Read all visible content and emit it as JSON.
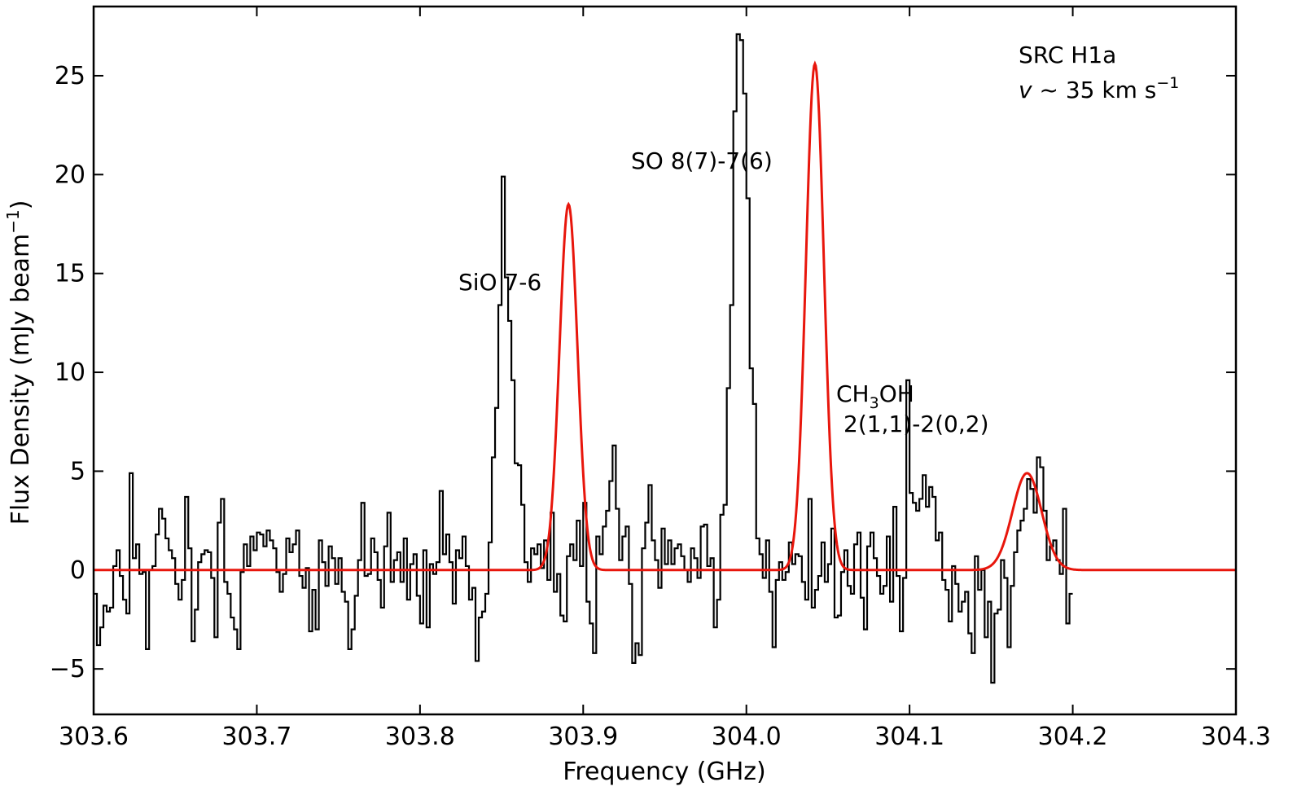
{
  "chart_data": {
    "type": "line",
    "xlabel": "Frequency (GHz)",
    "ylabel_main": "Flux Density (mJy beam",
    "ylabel_sup": "−1",
    "ylabel_close": ")",
    "xlim": [
      303.6,
      304.3
    ],
    "ylim": [
      -7.3,
      28.5
    ],
    "x_ticks": [
      303.6,
      303.7,
      303.8,
      303.9,
      304.0,
      304.1,
      304.2,
      304.3
    ],
    "x_tick_labels": [
      "303.6",
      "303.7",
      "303.8",
      "303.9",
      "304.0",
      "304.1",
      "304.2",
      "304.3"
    ],
    "y_ticks": [
      -5,
      0,
      5,
      10,
      15,
      20,
      25
    ],
    "y_tick_labels": [
      "−5",
      "0",
      "5",
      "10",
      "15",
      "20",
      "25"
    ],
    "grid": false,
    "colors": {
      "spectrum": "#000000",
      "fit": "#e8160c"
    },
    "annotations": {
      "source_line1": "SRC H1a",
      "source_line2_italic": "v",
      "source_line2_rest": " ~ 35 km s",
      "source_line2_sup": "−1",
      "sio": "SiO 7-6",
      "so": "SO 8(7)-7(6)",
      "ch3oh_a": "CH",
      "ch3oh_sub": "3",
      "ch3oh_b": "OH",
      "ch3oh_transition": "2(1,1)-2(0,2)"
    },
    "series": [
      {
        "kind": "spectrum",
        "channel_width": 0.002,
        "x_start": 303.6,
        "values": [
          -1.2,
          -3.8,
          -2.9,
          -1.8,
          -2.1,
          -1.9,
          0.2,
          1.0,
          -0.3,
          -1.5,
          -2.2,
          4.9,
          0.6,
          1.3,
          -0.2,
          -0.1,
          -4.0,
          0.0,
          0.2,
          1.8,
          3.1,
          2.6,
          1.6,
          1.0,
          0.6,
          -0.7,
          -1.5,
          -0.5,
          3.7,
          1.1,
          -3.6,
          -2.0,
          0.4,
          0.8,
          1.0,
          0.9,
          -0.4,
          -3.4,
          2.4,
          3.6,
          -0.6,
          -1.2,
          -2.4,
          -3.0,
          -4.0,
          -0.1,
          1.3,
          0.2,
          1.7,
          1.0,
          1.9,
          1.8,
          1.2,
          2.0,
          1.5,
          1.1,
          -0.1,
          -1.1,
          -0.2,
          1.6,
          0.9,
          1.3,
          2.0,
          -0.3,
          -0.9,
          0.1,
          -3.1,
          -1.0,
          -3.0,
          1.5,
          0.4,
          -0.8,
          1.2,
          0.6,
          -0.7,
          0.6,
          -1.1,
          -1.6,
          -4.0,
          -3.0,
          -1.3,
          0.5,
          3.4,
          -0.3,
          -0.2,
          1.6,
          0.9,
          -0.5,
          -1.9,
          1.2,
          2.9,
          -0.6,
          0.5,
          0.9,
          -0.6,
          1.6,
          -1.5,
          0.3,
          0.8,
          -1.3,
          -2.7,
          1.0,
          -2.9,
          0.3,
          -0.2,
          0.4,
          4.0,
          0.8,
          1.8,
          0.4,
          -1.7,
          1.0,
          0.6,
          1.7,
          0.2,
          -1.5,
          -0.9,
          -4.6,
          -2.4,
          -2.1,
          -1.2,
          1.4,
          5.7,
          8.2,
          13.4,
          19.9,
          14.8,
          12.6,
          9.6,
          5.4,
          5.3,
          3.3,
          0.4,
          -0.6,
          1.1,
          0.8,
          1.3,
          0.1,
          1.5,
          -0.5,
          2.9,
          -1.1,
          -0.2,
          -2.3,
          -2.6,
          0.7,
          1.3,
          0.5,
          2.5,
          0.2,
          3.4,
          -1.6,
          -2.7,
          -4.2,
          1.7,
          0.8,
          2.2,
          3.0,
          4.5,
          6.3,
          3.1,
          0.5,
          1.7,
          2.2,
          -0.7,
          -4.7,
          -3.7,
          -4.3,
          1.1,
          2.4,
          4.3,
          1.5,
          0.5,
          -0.9,
          2.1,
          0.3,
          1.5,
          0.3,
          1.1,
          1.3,
          0.7,
          0.0,
          -0.6,
          1.1,
          0.6,
          -0.4,
          2.2,
          2.3,
          0.2,
          0.6,
          -2.9,
          -1.5,
          2.8,
          3.3,
          9.2,
          13.4,
          23.2,
          27.1,
          26.8,
          24.1,
          18.8,
          10.2,
          8.4,
          1.6,
          0.8,
          -0.4,
          1.5,
          -1.1,
          -3.9,
          -0.5,
          0.4,
          -0.5,
          -0.1,
          1.4,
          0.3,
          0.8,
          0.7,
          -0.6,
          -1.5,
          3.6,
          -1.9,
          -1.0,
          -0.3,
          1.4,
          -0.6,
          0.3,
          2.1,
          -2.4,
          -2.3,
          -0.1,
          1.0,
          -0.8,
          -1.2,
          1.3,
          1.9,
          -1.4,
          -3.0,
          1.2,
          1.9,
          0.6,
          -0.3,
          -1.2,
          -0.8,
          1.7,
          -1.6,
          3.2,
          -0.3,
          -3.1,
          -0.4,
          9.6,
          3.9,
          3.4,
          3.0,
          3.6,
          4.8,
          3.2,
          4.2,
          3.7,
          1.5,
          1.9,
          -0.5,
          -1.0,
          -2.6,
          0.2,
          -0.7,
          -2.1,
          -1.6,
          -1.1,
          -3.2,
          -4.2,
          0.7,
          -1.0,
          0.0,
          -3.4,
          -1.6,
          -5.7,
          -2.2,
          -2.0,
          0.5,
          -0.4,
          -3.9,
          -0.8,
          0.9,
          2.0,
          2.5,
          3.1,
          4.6,
          4.1,
          2.9,
          5.7,
          5.2,
          3.0,
          0.5,
          1.2,
          1.5,
          0.5,
          -0.2,
          3.1,
          -2.7,
          -1.2
        ]
      },
      {
        "kind": "gaussian_fit",
        "components": [
          {
            "center": 303.891,
            "amplitude": 18.5,
            "fwhm": 0.013
          },
          {
            "center": 304.042,
            "amplitude": 25.6,
            "fwhm": 0.013
          },
          {
            "center": 304.172,
            "amplitude": 4.9,
            "fwhm": 0.021
          }
        ]
      }
    ]
  }
}
